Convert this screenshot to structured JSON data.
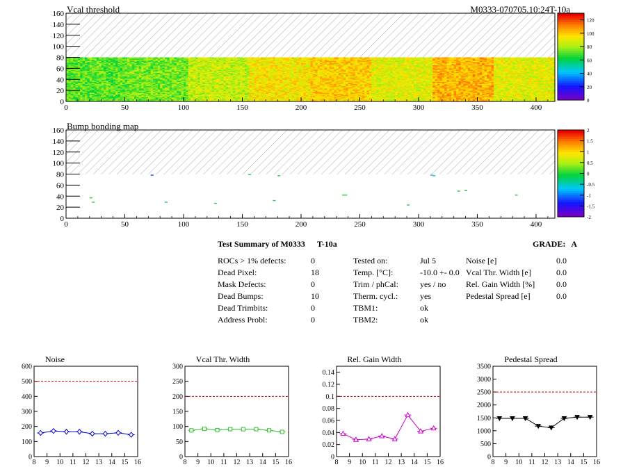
{
  "maps": [
    {
      "title": "Vcal threshold",
      "id_label": "M0333-070705.10:24T-10a",
      "x_ticks": [
        "0",
        "50",
        "100",
        "150",
        "200",
        "250",
        "300",
        "350",
        "400"
      ],
      "y_ticks": [
        "0",
        "20",
        "40",
        "60",
        "80",
        "100",
        "120",
        "140",
        "160"
      ],
      "color_ticks": [
        "0",
        "20",
        "40",
        "60",
        "80",
        "100",
        "120"
      ],
      "color_range": [
        0,
        130
      ],
      "x_range": [
        0,
        416
      ],
      "y_range": [
        0,
        160
      ],
      "filled_rows": 80,
      "typical_value_by_roc": [
        72,
        75,
        85,
        95,
        100,
        90,
        105,
        90
      ]
    },
    {
      "title": "Bump bonding map",
      "x_ticks": [
        "0",
        "50",
        "100",
        "150",
        "200",
        "250",
        "300",
        "350",
        "400"
      ],
      "y_ticks": [
        "0",
        "20",
        "40",
        "60",
        "80",
        "100",
        "120",
        "140",
        "160"
      ],
      "color_ticks": [
        "-2",
        "-1.5",
        "-1",
        "-0.5",
        "0",
        "0.5",
        "1",
        "1.5",
        "2"
      ],
      "color_range": [
        -2,
        2
      ],
      "x_range": [
        0,
        416
      ],
      "y_range": [
        0,
        160
      ]
    }
  ],
  "summary": {
    "title": "Test Summary of M0333",
    "temp_tag": "T-10a",
    "grade_label": "GRADE:",
    "grade": "A",
    "col1": [
      {
        "label": "ROCs > 1% defects:",
        "value": "0"
      },
      {
        "label": "Dead Pixel:",
        "value": "18"
      },
      {
        "label": "Mask Defects:",
        "value": "0"
      },
      {
        "label": "Dead Bumps:",
        "value": "10"
      },
      {
        "label": "Dead Trimbits:",
        "value": "0"
      },
      {
        "label": "Address Probl:",
        "value": "0"
      }
    ],
    "col2": [
      {
        "label": "Tested on:",
        "value": "Jul 5"
      },
      {
        "label": "Temp. [°C]:",
        "value": "-10.0 +- 0.0"
      },
      {
        "label": "Trim / phCal:",
        "value": "yes / no"
      },
      {
        "label": "Therm. cycl.:",
        "value": "yes"
      },
      {
        "label": "TBM1:",
        "value": "ok"
      },
      {
        "label": "TBM2:",
        "value": "ok"
      }
    ],
    "col3": [
      {
        "label": "Noise [e]",
        "value": "0.0"
      },
      {
        "label": "Vcal Thr. Width [e]",
        "value": "0.0"
      },
      {
        "label": "Rel. Gain Width [%]",
        "value": "0.0"
      },
      {
        "label": "Pedestal Spread [e]",
        "value": "0.0"
      }
    ]
  },
  "chart_data": [
    {
      "type": "line",
      "title": "Noise",
      "x": [
        8.5,
        9.5,
        10.5,
        11.5,
        12.5,
        13.5,
        14.5,
        15.5
      ],
      "series": [
        {
          "values": [
            157,
            170,
            165,
            165,
            152,
            152,
            158,
            145
          ],
          "color": "#0000cc",
          "marker": "diamond"
        }
      ],
      "xlim": [
        8,
        16
      ],
      "ylim": [
        0,
        600
      ],
      "x_ticks": [
        "8",
        "9",
        "10",
        "11",
        "12",
        "13",
        "14",
        "15",
        "16"
      ],
      "y_ticks": [
        "0",
        "100",
        "200",
        "300",
        "400",
        "500",
        "600"
      ],
      "threshold": 500
    },
    {
      "type": "line",
      "title": "Vcal Thr. Width",
      "x": [
        8.5,
        9.5,
        10.5,
        11.5,
        12.5,
        13.5,
        14.5,
        15.5
      ],
      "series": [
        {
          "values": [
            87,
            92,
            88,
            91,
            91,
            91,
            87,
            82
          ],
          "color": "#33bb33",
          "marker": "square"
        }
      ],
      "xlim": [
        8,
        16
      ],
      "ylim": [
        0,
        300
      ],
      "x_ticks": [
        "8",
        "9",
        "10",
        "11",
        "12",
        "13",
        "14",
        "15",
        "16"
      ],
      "y_ticks": [
        "0",
        "50",
        "100",
        "150",
        "200",
        "250",
        "300"
      ],
      "threshold": 200
    },
    {
      "type": "line",
      "title": "Rel. Gain Width",
      "x": [
        8.5,
        9.5,
        10.5,
        11.5,
        12.5,
        13.5,
        14.5,
        15.5
      ],
      "series": [
        {
          "values": [
            0.038,
            0.028,
            0.029,
            0.034,
            0.029,
            0.069,
            0.042,
            0.047
          ],
          "color": "#cc00cc",
          "marker": "triangle"
        }
      ],
      "xlim": [
        8,
        16
      ],
      "ylim": [
        0,
        0.15
      ],
      "x_ticks": [
        "8",
        "9",
        "10",
        "11",
        "12",
        "13",
        "14",
        "15",
        "16"
      ],
      "y_ticks": [
        "0",
        "0.02",
        "0.04",
        "0.06",
        "0.08",
        "0.1",
        "0.12",
        "0.14"
      ],
      "threshold": 0.1
    },
    {
      "type": "line",
      "title": "Pedestal Spread",
      "x": [
        8.5,
        9.5,
        10.5,
        11.5,
        12.5,
        13.5,
        14.5,
        15.5
      ],
      "series": [
        {
          "values": [
            1480,
            1480,
            1480,
            1180,
            1120,
            1480,
            1530,
            1530
          ],
          "color": "#000000",
          "marker": "triangle-down"
        }
      ],
      "xlim": [
        8,
        16
      ],
      "ylim": [
        0,
        3500
      ],
      "x_ticks": [
        "8",
        "9",
        "10",
        "11",
        "12",
        "13",
        "14",
        "15",
        "16"
      ],
      "y_ticks": [
        "0",
        "500",
        "1000",
        "1500",
        "2000",
        "2500",
        "3000",
        "3500"
      ],
      "threshold": 2500
    }
  ]
}
